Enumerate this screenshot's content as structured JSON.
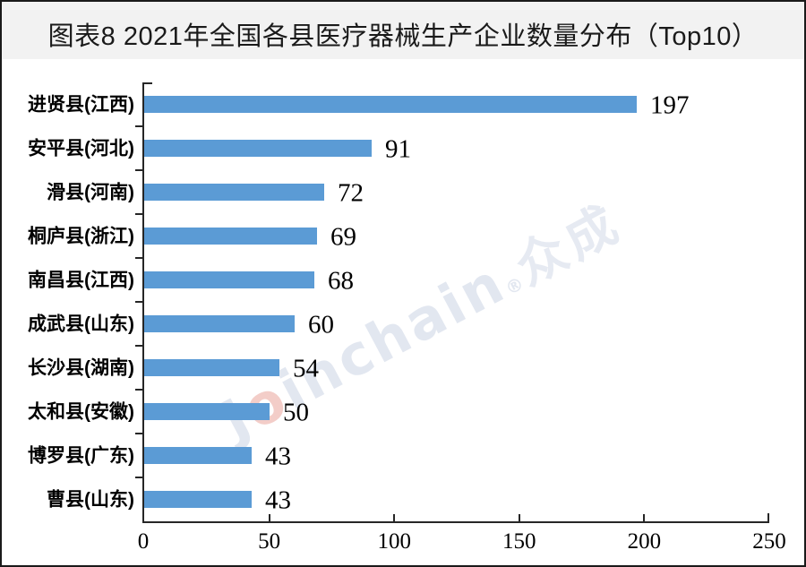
{
  "title": "图表8  2021年全国各县医疗器械生产企业数量分布（Top10）",
  "watermark": {
    "part1": "J",
    "accent": "o",
    "part2": "inchain",
    "reg": "®",
    "cjk": "众成"
  },
  "colors": {
    "bar": "#5B9BD5",
    "axis": "#262626",
    "title_band_bg": "#f2f2f2",
    "title_text": "#1a1a1a",
    "frame_border": "#1a1a1a",
    "watermark_main": "#e2e7f0",
    "watermark_accent": "#f3cdc8",
    "label_text": "#000000"
  },
  "chart_data": {
    "type": "bar",
    "orientation": "horizontal",
    "title": "图表8  2021年全国各县医疗器械生产企业数量分布（Top10）",
    "categories": [
      "进贤县(江西)",
      "安平县(河北)",
      "滑县(河南)",
      "桐庐县(浙江)",
      "南昌县(江西)",
      "成武县(山东)",
      "长沙县(湖南)",
      "太和县(安徽)",
      "博罗县(广东)",
      "曹县(山东)"
    ],
    "values": [
      197,
      91,
      72,
      69,
      68,
      60,
      54,
      50,
      43,
      43
    ],
    "value_labels_shown": true,
    "xlabel": "",
    "ylabel": "",
    "xlim": [
      0,
      250
    ],
    "xticks": [
      0,
      50,
      100,
      150,
      200,
      250
    ],
    "grid": false,
    "legend": null,
    "bar_color": "#5B9BD5"
  }
}
